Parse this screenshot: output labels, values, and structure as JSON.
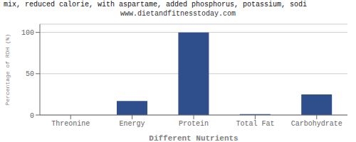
{
  "chart_data": {
    "type": "bar",
    "title": "mix, reduced calorie, with aspartame, added phosphorus, potassium, sodi",
    "subtitle": "www.dietandfitnesstoday.com",
    "categories": [
      "Threonine",
      "Energy",
      "Protein",
      "Total Fat",
      "Carbohydrate"
    ],
    "values": [
      0,
      17,
      100,
      1,
      25
    ],
    "color": "#2e4f8c",
    "xlabel": "Different Nutrients",
    "ylabel": "Percentage of RDH (%)",
    "ylim": [
      0,
      110
    ],
    "yticks": [
      0,
      50,
      100
    ],
    "grid": true
  }
}
